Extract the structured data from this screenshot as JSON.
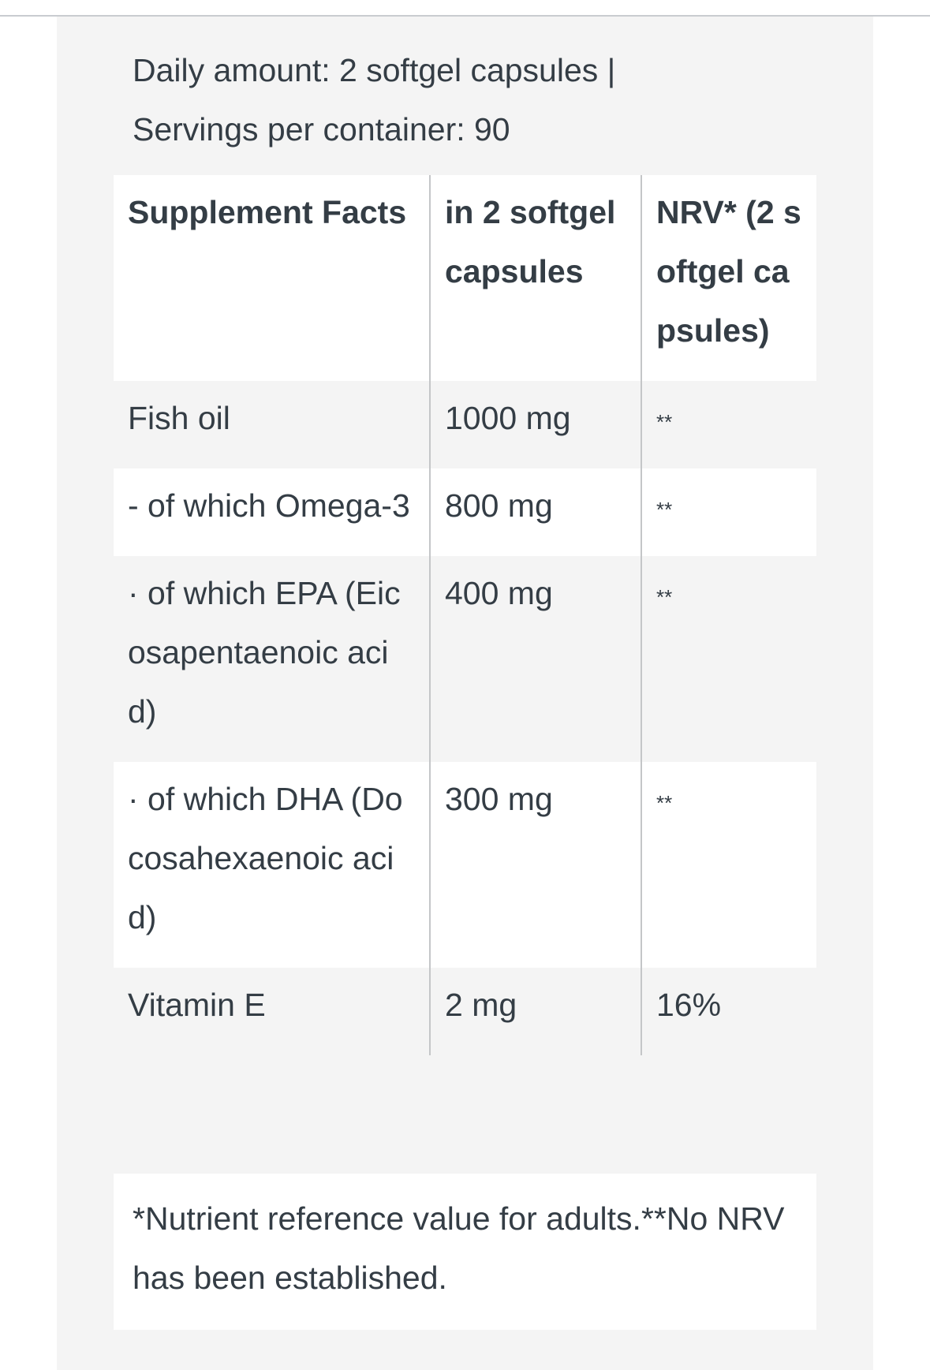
{
  "intro": {
    "daily_amount": "Daily amount: 2 softgel capsules |",
    "servings": "Servings per container: 90"
  },
  "table": {
    "headers": [
      "Supplement Facts",
      "in 2 softgel capsules",
      "NRV* (2 softgel capsules)"
    ],
    "rows": [
      {
        "name": "Fish oil",
        "amount": "1000 mg",
        "nrv": "**"
      },
      {
        "name": "- of which Omega-3",
        "amount": "800 mg",
        "nrv": "**"
      },
      {
        "name": "· of which EPA (Eicosapentaenoic acid)",
        "amount": "400 mg",
        "nrv": "**"
      },
      {
        "name": "· of which DHA (Docosahexaenoic acid)",
        "amount": "300 mg",
        "nrv": "**"
      },
      {
        "name": "Vitamin E",
        "amount": "2 mg",
        "nrv": "16%"
      }
    ]
  },
  "footnote": "*Nutrient reference value for adults.**No NRV has been established."
}
